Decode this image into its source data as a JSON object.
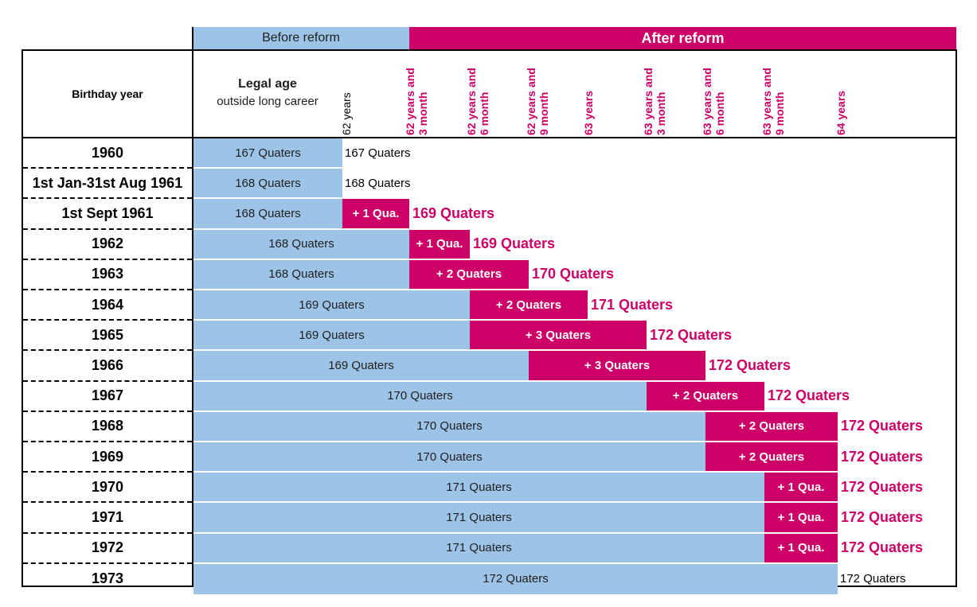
{
  "header": {
    "before_reform": "Before reform",
    "after_reform": "After reform",
    "birthday_year": "Birthday year",
    "legal_age_title": "Legal age",
    "legal_age_sub": "outside long career"
  },
  "age_columns": [
    {
      "line1": "62 years",
      "line2": ""
    },
    {
      "line1": "62 years and",
      "line2": "3 month"
    },
    {
      "line1": "62 years and",
      "line2": "6 month"
    },
    {
      "line1": "62 years and",
      "line2": "9 month"
    },
    {
      "line1": "63 years",
      "line2": ""
    },
    {
      "line1": "63 years and",
      "line2": "3 month"
    },
    {
      "line1": "63 years and",
      "line2": "6 month"
    },
    {
      "line1": "63 years and",
      "line2": "9 month"
    },
    {
      "line1": "64 years",
      "line2": ""
    }
  ],
  "rows": [
    {
      "year": "1960",
      "before": "167 Quaters",
      "increase": "",
      "after": "167 Quaters"
    },
    {
      "year": "1st Jan-31st Aug 1961",
      "before": "168 Quaters",
      "increase": "",
      "after": "168 Quaters"
    },
    {
      "year": "1st Sept 1961",
      "before": "168 Quaters",
      "increase": "+ 1 Qua.",
      "after": "169 Quaters"
    },
    {
      "year": "1962",
      "before": "168 Quaters",
      "increase": "+ 1 Qua.",
      "after": "169 Quaters"
    },
    {
      "year": "1963",
      "before": "168 Quaters",
      "increase": "+ 2 Quaters",
      "after": "170 Quaters"
    },
    {
      "year": "1964",
      "before": "169 Quaters",
      "increase": "+ 2 Quaters",
      "after": "171 Quaters"
    },
    {
      "year": "1965",
      "before": "169 Quaters",
      "increase": "+ 3 Quaters",
      "after": "172 Quaters"
    },
    {
      "year": "1966",
      "before": "169 Quaters",
      "increase": "+ 3 Quaters",
      "after": "172 Quaters"
    },
    {
      "year": "1967",
      "before": "170 Quaters",
      "increase": "+ 2 Quaters",
      "after": "172 Quaters"
    },
    {
      "year": "1968",
      "before": "170 Quaters",
      "increase": "+ 2 Quaters",
      "after": "172 Quaters"
    },
    {
      "year": "1969",
      "before": "170 Quaters",
      "increase": "+ 2 Quaters",
      "after": "172 Quaters"
    },
    {
      "year": "1970",
      "before": "171 Quaters",
      "increase": "+ 1 Qua.",
      "after": "172 Quaters"
    },
    {
      "year": "1971",
      "before": "171 Quaters",
      "increase": "+ 1 Qua.",
      "after": "172 Quaters"
    },
    {
      "year": "1972",
      "before": "171 Quaters",
      "increase": "+ 1 Qua.",
      "after": "172 Quaters"
    },
    {
      "year": "1973",
      "before": "172 Quaters",
      "increase": "",
      "after": "172 Quaters"
    }
  ],
  "colors": {
    "before": "#9dc3e6",
    "after": "#cc0066"
  }
}
